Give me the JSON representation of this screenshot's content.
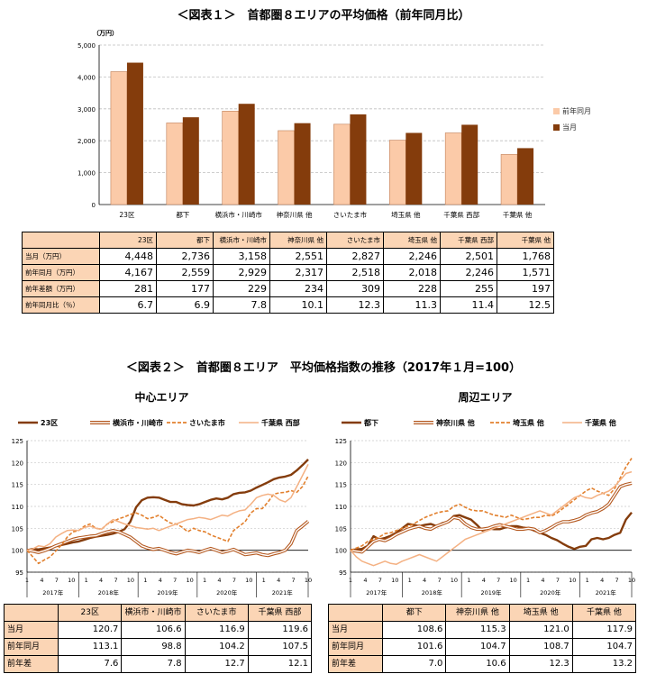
{
  "title1": "＜図表１＞　首都圏８エリアの平均価格（前年同月比）",
  "title2": "＜図表２＞　首都圏８エリア　平均価格指数の推移（2017年１月=100）",
  "chart_data": [
    {
      "type": "bar",
      "title": "＜図表１＞　首都圏８エリアの平均価格（前年同月比）",
      "unit": "（万円）",
      "categories": [
        "23区",
        "都下",
        "横浜市・川崎市",
        "神奈川県 他",
        "さいたま市",
        "埼玉県 他",
        "千葉県 西部",
        "千葉県 他"
      ],
      "series": [
        {
          "name": "前年同月",
          "values": [
            4167,
            2559,
            2929,
            2317,
            2518,
            2018,
            2246,
            1571
          ],
          "color": "#fbcaa8"
        },
        {
          "name": "当月",
          "values": [
            4448,
            2736,
            3158,
            2551,
            2827,
            2246,
            2501,
            1768
          ],
          "color": "#843c0c"
        }
      ],
      "ylim": [
        0,
        5000
      ],
      "yticks": [
        "0",
        "1,000",
        "2,000",
        "3,000",
        "4,000",
        "5,000"
      ],
      "grid": true,
      "legend": "right"
    },
    {
      "type": "line",
      "title": "中心エリア",
      "ylim": [
        95,
        125
      ],
      "yticks": [
        "95",
        "100",
        "105",
        "110",
        "115",
        "120",
        "125"
      ],
      "month_ticks": [
        "1",
        "4",
        "7",
        "10",
        "1",
        "4",
        "7",
        "10",
        "1",
        "4",
        "7",
        "10",
        "1",
        "4",
        "7",
        "10",
        "1",
        "4",
        "7",
        "10"
      ],
      "year_labels": [
        "2017年",
        "2018年",
        "2019年",
        "2020年",
        "2021年"
      ],
      "legend": "top",
      "series": [
        {
          "name": "23区",
          "color": "#843c0c",
          "style": "solid-thick",
          "values": [
            100.0,
            100.3,
            100.2,
            100.4,
            100.6,
            100.9,
            101.2,
            101.5,
            101.8,
            102.0,
            102.4,
            102.8,
            103.1,
            103.3,
            103.5,
            103.8,
            104.2,
            104.8,
            106.5,
            109.8,
            111.4,
            112.0,
            112.1,
            112.0,
            111.5,
            111.0,
            111.0,
            110.5,
            110.3,
            110.2,
            110.5,
            111.0,
            111.5,
            111.8,
            111.6,
            112.0,
            112.8,
            113.1,
            113.2,
            113.6,
            114.3,
            114.9,
            115.5,
            116.2,
            116.6,
            116.8,
            117.2,
            118.2,
            119.4,
            120.7
          ]
        },
        {
          "name": "横浜市・川崎市",
          "color": "#b4581f",
          "style": "double",
          "values": [
            100.0,
            99.8,
            99.5,
            99.9,
            100.4,
            101.0,
            101.5,
            102.0,
            102.5,
            102.8,
            103.0,
            103.2,
            103.3,
            103.8,
            104.2,
            104.5,
            104.2,
            103.6,
            103.0,
            102.0,
            101.0,
            100.5,
            100.2,
            100.4,
            100.0,
            99.5,
            99.2,
            99.6,
            100.0,
            99.8,
            99.5,
            100.0,
            100.4,
            100.0,
            99.5,
            99.8,
            100.2,
            99.6,
            99.0,
            99.2,
            99.4,
            99.0,
            98.8,
            99.2,
            99.5,
            100.0,
            101.5,
            104.5,
            105.5,
            106.6
          ]
        },
        {
          "name": "さいたま市",
          "color": "#e2802e",
          "style": "dashed",
          "values": [
            100.0,
            98.5,
            97.0,
            97.8,
            98.5,
            99.8,
            101.2,
            103.0,
            104.2,
            104.5,
            105.5,
            106.0,
            105.0,
            104.8,
            106.0,
            106.5,
            107.2,
            107.6,
            108.2,
            108.5,
            108.0,
            107.2,
            107.5,
            108.0,
            107.0,
            106.2,
            106.0,
            105.3,
            104.2,
            105.0,
            104.5,
            104.2,
            103.5,
            103.0,
            102.5,
            102.0,
            104.5,
            105.5,
            106.5,
            108.5,
            109.5,
            109.5,
            111.0,
            112.8,
            113.1,
            113.2,
            113.6,
            113.2,
            114.5,
            116.9
          ]
        },
        {
          "name": "千葉県 西部",
          "color": "#f4b183",
          "style": "solid-thin",
          "values": [
            100.0,
            100.3,
            101.0,
            100.8,
            101.5,
            103.0,
            103.8,
            104.5,
            104.6,
            104.5,
            105.2,
            105.5,
            105.0,
            104.8,
            106.0,
            107.0,
            106.5,
            106.0,
            105.6,
            105.2,
            105.0,
            104.8,
            105.0,
            104.5,
            105.0,
            105.5,
            106.0,
            106.5,
            107.0,
            107.2,
            107.5,
            107.3,
            107.0,
            107.5,
            108.0,
            107.8,
            108.5,
            109.0,
            109.2,
            110.5,
            112.0,
            112.5,
            112.8,
            112.5,
            111.5,
            111.0,
            112.0,
            114.5,
            117.0,
            119.6
          ]
        }
      ],
      "table": {
        "headers": [
          "23区",
          "横浜市・川崎市",
          "さいたま市",
          "千葉県 西部"
        ],
        "rows": [
          {
            "label": "当月",
            "values": [
              "120.7",
              "106.6",
              "116.9",
              "119.6"
            ]
          },
          {
            "label": "前年同月",
            "values": [
              "113.1",
              "98.8",
              "104.2",
              "107.5"
            ]
          },
          {
            "label": "前年差",
            "values": [
              "7.6",
              "7.8",
              "12.7",
              "12.1"
            ]
          }
        ]
      }
    },
    {
      "type": "line",
      "title": "周辺エリア",
      "ylim": [
        95,
        125
      ],
      "yticks": [
        "95",
        "100",
        "105",
        "110",
        "115",
        "120",
        "125"
      ],
      "month_ticks": [
        "1",
        "4",
        "7",
        "10",
        "1",
        "4",
        "7",
        "10",
        "1",
        "4",
        "7",
        "10",
        "1",
        "4",
        "7",
        "10",
        "1",
        "4",
        "7",
        "10"
      ],
      "year_labels": [
        "2017年",
        "2018年",
        "2019年",
        "2020年",
        "2021年"
      ],
      "legend": "top",
      "series": [
        {
          "name": "都下",
          "color": "#843c0c",
          "style": "solid-thick",
          "values": [
            100.0,
            100.2,
            100.3,
            101.0,
            103.2,
            102.5,
            102.8,
            103.3,
            104.0,
            105.0,
            106.0,
            105.8,
            105.5,
            105.8,
            106.0,
            105.5,
            106.2,
            106.5,
            107.8,
            108.0,
            107.5,
            107.0,
            105.8,
            104.5,
            105.0,
            104.8,
            104.8,
            105.2,
            105.5,
            105.5,
            105.2,
            105.0,
            104.5,
            104.0,
            103.5,
            102.8,
            102.3,
            101.5,
            100.8,
            100.3,
            100.8,
            101.0,
            102.5,
            102.8,
            102.5,
            102.8,
            103.5,
            104.0,
            107.0,
            108.6
          ]
        },
        {
          "name": "神奈川県 他",
          "color": "#b4581f",
          "style": "double",
          "values": [
            100.0,
            99.8,
            99.6,
            100.8,
            102.0,
            102.5,
            102.2,
            102.8,
            103.6,
            104.2,
            104.8,
            105.2,
            105.5,
            105.0,
            104.8,
            105.5,
            106.0,
            106.5,
            107.5,
            107.2,
            106.0,
            105.2,
            104.8,
            104.8,
            105.0,
            105.5,
            105.8,
            105.5,
            105.2,
            104.8,
            104.8,
            105.0,
            104.8,
            104.0,
            104.5,
            105.2,
            106.0,
            106.5,
            106.5,
            106.8,
            107.2,
            108.0,
            108.5,
            108.8,
            109.5,
            110.5,
            112.5,
            114.5,
            115.0,
            115.3
          ]
        },
        {
          "name": "埼玉県 他",
          "color": "#e2802e",
          "style": "dashed",
          "values": [
            100.0,
            100.5,
            101.0,
            102.0,
            102.5,
            103.0,
            103.8,
            104.0,
            104.5,
            105.0,
            105.5,
            106.0,
            106.8,
            107.5,
            108.0,
            108.5,
            108.8,
            109.0,
            110.0,
            110.5,
            109.8,
            109.2,
            109.0,
            109.0,
            108.5,
            108.0,
            107.8,
            107.5,
            108.0,
            107.5,
            107.0,
            107.2,
            107.5,
            107.5,
            108.0,
            107.8,
            108.5,
            109.5,
            110.5,
            111.5,
            112.5,
            113.5,
            114.2,
            113.5,
            113.0,
            112.5,
            114.0,
            116.5,
            119.0,
            121.0
          ]
        },
        {
          "name": "千葉県 他",
          "color": "#f4b183",
          "style": "solid-thin",
          "values": [
            100.0,
            98.5,
            97.5,
            97.0,
            96.5,
            97.0,
            97.5,
            97.0,
            96.8,
            97.5,
            98.0,
            98.5,
            99.0,
            98.5,
            98.0,
            97.5,
            98.5,
            99.5,
            100.5,
            101.5,
            102.5,
            103.0,
            103.5,
            104.0,
            104.5,
            105.0,
            105.5,
            106.0,
            106.5,
            107.0,
            107.5,
            108.0,
            108.5,
            109.0,
            108.5,
            108.0,
            109.0,
            110.0,
            111.0,
            112.0,
            112.5,
            112.0,
            111.8,
            112.5,
            113.0,
            113.5,
            114.5,
            116.0,
            117.5,
            117.9
          ]
        }
      ],
      "table": {
        "headers": [
          "都下",
          "神奈川県 他",
          "埼玉県 他",
          "千葉県 他"
        ],
        "rows": [
          {
            "label": "当月",
            "values": [
              "108.6",
              "115.3",
              "121.0",
              "117.9"
            ]
          },
          {
            "label": "前年同月",
            "values": [
              "101.6",
              "104.7",
              "108.7",
              "104.7"
            ]
          },
          {
            "label": "前年差",
            "values": [
              "7.0",
              "10.6",
              "12.3",
              "13.2"
            ]
          }
        ]
      }
    }
  ],
  "table1": {
    "headers": [
      "23区",
      "都下",
      "横浜市・川崎市",
      "神奈川県 他",
      "さいたま市",
      "埼玉県 他",
      "千葉県 西部",
      "千葉県 他"
    ],
    "rows": [
      {
        "label": "当月（万円）",
        "values": [
          "4,448",
          "2,736",
          "3,158",
          "2,551",
          "2,827",
          "2,246",
          "2,501",
          "1,768"
        ]
      },
      {
        "label": "前年同月（万円）",
        "values": [
          "4,167",
          "2,559",
          "2,929",
          "2,317",
          "2,518",
          "2,018",
          "2,246",
          "1,571"
        ]
      },
      {
        "label": "前年差額（万円）",
        "values": [
          "281",
          "177",
          "229",
          "234",
          "309",
          "228",
          "255",
          "197"
        ]
      },
      {
        "label": "前年同月比（％）",
        "values": [
          "6.7",
          "6.9",
          "7.8",
          "10.1",
          "12.3",
          "11.3",
          "11.4",
          "12.5"
        ]
      }
    ]
  }
}
